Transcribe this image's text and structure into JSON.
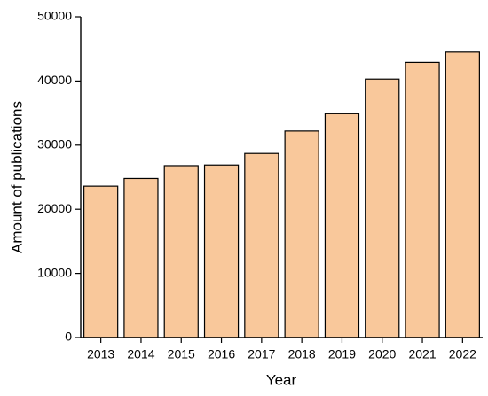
{
  "chart_data": {
    "type": "bar",
    "xlabel": "Year",
    "ylabel": "Amount of publications",
    "categories": [
      "2013",
      "2014",
      "2015",
      "2016",
      "2017",
      "2018",
      "2019",
      "2020",
      "2021",
      "2022"
    ],
    "values": [
      23600,
      24800,
      26800,
      26900,
      28700,
      32200,
      34900,
      40300,
      42900,
      44500
    ],
    "color": "#f9c89b",
    "ylim": [
      0,
      50000
    ],
    "yticks": [
      0,
      10000,
      20000,
      30000,
      40000,
      50000
    ],
    "grid": false
  }
}
